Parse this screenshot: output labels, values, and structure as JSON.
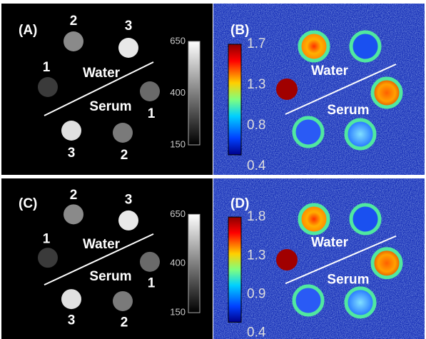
{
  "panels": [
    {
      "label": "(A)",
      "numbers": [
        1,
        2,
        3,
        1,
        3,
        2
      ],
      "water": "Water",
      "serum": "Serum",
      "colorbar_ticks": [
        650,
        400,
        150
      ]
    },
    {
      "label": "(B)",
      "water": "Water",
      "serum": "Serum",
      "colorbar_ticks": [
        1.7,
        1.3,
        0.8,
        0.4
      ]
    },
    {
      "label": "(C)",
      "numbers": [
        1,
        2,
        3,
        1,
        3,
        2
      ],
      "water": "Water",
      "serum": "Serum",
      "colorbar_ticks": [
        650,
        400,
        150
      ]
    },
    {
      "label": "(D)",
      "water": "Water",
      "serum": "Serum",
      "colorbar_ticks": [
        1.8,
        1.3,
        0.9,
        0.4
      ]
    }
  ]
}
